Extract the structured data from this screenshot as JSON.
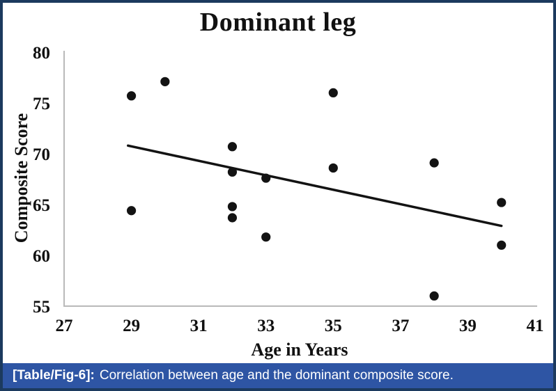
{
  "figure": {
    "caption_label": "[Table/Fig-6]:",
    "caption_text": "Correlation between age and the dominant composite score."
  },
  "colors": {
    "border": "#1c3a5e",
    "caption_bg": "#2e55a4",
    "caption_text": "#ffffff",
    "point": "#131313",
    "trend": "#131313",
    "axis": "#b9b9b9",
    "text": "#111111"
  },
  "chart_data": {
    "type": "scatter",
    "title": "Dominant leg",
    "xlabel": "Age in Years",
    "ylabel": "Composite Score",
    "xlim": [
      27,
      41
    ],
    "ylim": [
      55,
      80
    ],
    "x_ticks": [
      27,
      29,
      31,
      33,
      35,
      37,
      39,
      41
    ],
    "y_ticks": [
      55,
      60,
      65,
      70,
      75,
      80
    ],
    "grid": false,
    "legend": false,
    "points": [
      {
        "x": 29,
        "y": 75.7
      },
      {
        "x": 29,
        "y": 64.4
      },
      {
        "x": 30,
        "y": 77.1
      },
      {
        "x": 32,
        "y": 70.7
      },
      {
        "x": 32,
        "y": 68.2
      },
      {
        "x": 32,
        "y": 64.8
      },
      {
        "x": 32,
        "y": 63.7
      },
      {
        "x": 33,
        "y": 67.6
      },
      {
        "x": 33,
        "y": 61.8
      },
      {
        "x": 35,
        "y": 76.0
      },
      {
        "x": 35,
        "y": 68.6
      },
      {
        "x": 38,
        "y": 69.1
      },
      {
        "x": 38,
        "y": 56.0
      },
      {
        "x": 40,
        "y": 65.2
      },
      {
        "x": 40,
        "y": 61.0
      }
    ],
    "trendline": {
      "x1": 28.9,
      "y1": 70.8,
      "x2": 40.0,
      "y2": 62.9
    }
  }
}
